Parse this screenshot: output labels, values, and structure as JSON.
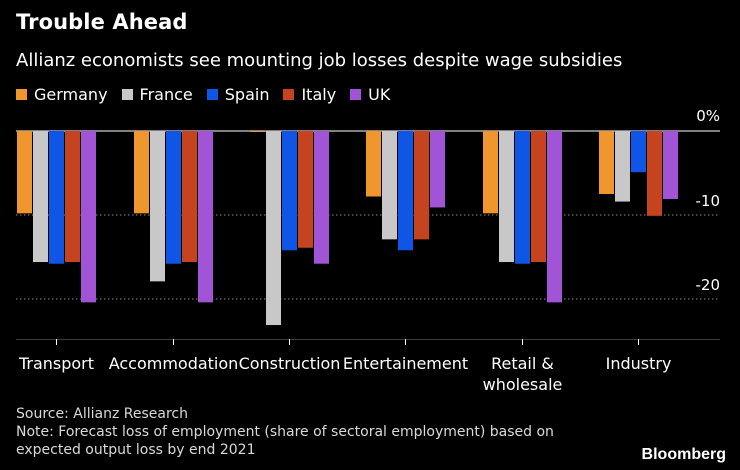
{
  "header": {
    "title": "Trouble Ahead",
    "subtitle": "Allianz economists see mounting job losses despite wage subsidies"
  },
  "footer": {
    "source": "Source: Allianz Research",
    "note": "Note: Forecast loss of employment (share of sectoral employment) based on expected output loss by end 2021",
    "brand": "Bloomberg"
  },
  "chart_data": {
    "type": "bar",
    "title": "Trouble Ahead",
    "subtitle": "Allianz economists see mounting job losses despite wage subsidies",
    "categories": [
      [
        "Transport"
      ],
      [
        "Accommodation"
      ],
      [
        "Construction"
      ],
      [
        "Entertainement"
      ],
      [
        "Retail &",
        "wholesale"
      ],
      [
        "Industry"
      ]
    ],
    "series": [
      {
        "name": "Germany",
        "color": "#f0962e",
        "values": [
          -9.8,
          -9.8,
          0,
          -7.8,
          -9.8,
          -7.5
        ]
      },
      {
        "name": "France",
        "color": "#c8c8c8",
        "values": [
          -15.6,
          -17.9,
          -23.1,
          -12.9,
          -15.6,
          -8.4
        ]
      },
      {
        "name": "Spain",
        "color": "#1056e6",
        "values": [
          -15.8,
          -15.8,
          -14.2,
          -14.2,
          -15.8,
          -4.9
        ]
      },
      {
        "name": "Italy",
        "color": "#c64320",
        "values": [
          -15.6,
          -15.6,
          -13.9,
          -12.9,
          -15.6,
          -10.1
        ]
      },
      {
        "name": "UK",
        "color": "#a155d6",
        "values": [
          -20.4,
          -20.4,
          -15.8,
          -9.1,
          -20.4,
          -8.1
        ]
      }
    ],
    "ylim": [
      -24,
      0
    ],
    "yticks": [
      0,
      -10,
      -20
    ],
    "ytick_labels": [
      "0%",
      "-10",
      "-20"
    ],
    "grid": true,
    "legend_position": "top-left"
  }
}
